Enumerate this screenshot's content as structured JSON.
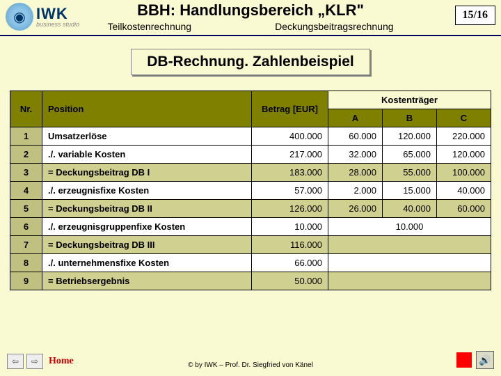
{
  "logo": {
    "main": "IWK",
    "sub": "business studio"
  },
  "title": "BBH: Handlungsbereich „KLR\"",
  "subheader": {
    "left": "Teilkostenrechnung",
    "right": "Deckungsbeitragsrechnung"
  },
  "page_badge": "15/16",
  "section_title": "DB-Rechnung. Zahlenbeispiel",
  "table": {
    "headers": {
      "nr": "Nr.",
      "position": "Position",
      "betrag": "Betrag [EUR]",
      "kostentraeger": "Kostenträger",
      "a": "A",
      "b": "B",
      "c": "C"
    },
    "rows": [
      {
        "nr": "1",
        "pos": "Umsatzerlöse",
        "bet": "400.000",
        "a": "60.000",
        "b": "120.000",
        "c": "220.000",
        "cls": "r"
      },
      {
        "nr": "2",
        "pos": "./. variable Kosten",
        "bet": "217.000",
        "a": "32.000",
        "b": "65.000",
        "c": "120.000",
        "cls": "r"
      },
      {
        "nr": "3",
        "pos": "= Deckungsbeitrag DB I",
        "bet": "183.000",
        "a": "28.000",
        "b": "55.000",
        "c": "100.000",
        "cls": "g"
      },
      {
        "nr": "4",
        "pos": "./. erzeugnisfixe Kosten",
        "bet": "57.000",
        "a": "2.000",
        "b": "15.000",
        "c": "40.000",
        "cls": "r"
      },
      {
        "nr": "5",
        "pos": "= Deckungsbeitrag DB II",
        "bet": "126.000",
        "a": "26.000",
        "b": "40.000",
        "c": "60.000",
        "cls": "g"
      },
      {
        "nr": "6",
        "pos": "./. erzeugnisgruppenfixe Kosten",
        "bet": "10.000",
        "merged": "10.000",
        "cls": "r"
      },
      {
        "nr": "7",
        "pos": "= Deckungsbeitrag DB III",
        "bet": "116.000",
        "cls": "g"
      },
      {
        "nr": "8",
        "pos": "./. unternehmensfixe Kosten",
        "bet": "66.000",
        "cls": "r"
      },
      {
        "nr": "9",
        "pos": "= Betriebsergebnis",
        "bet": "50.000",
        "cls": "g"
      }
    ]
  },
  "footer": {
    "copy": "© by IWK – Prof. Dr. Siegfried von Känel",
    "home": "Home"
  }
}
